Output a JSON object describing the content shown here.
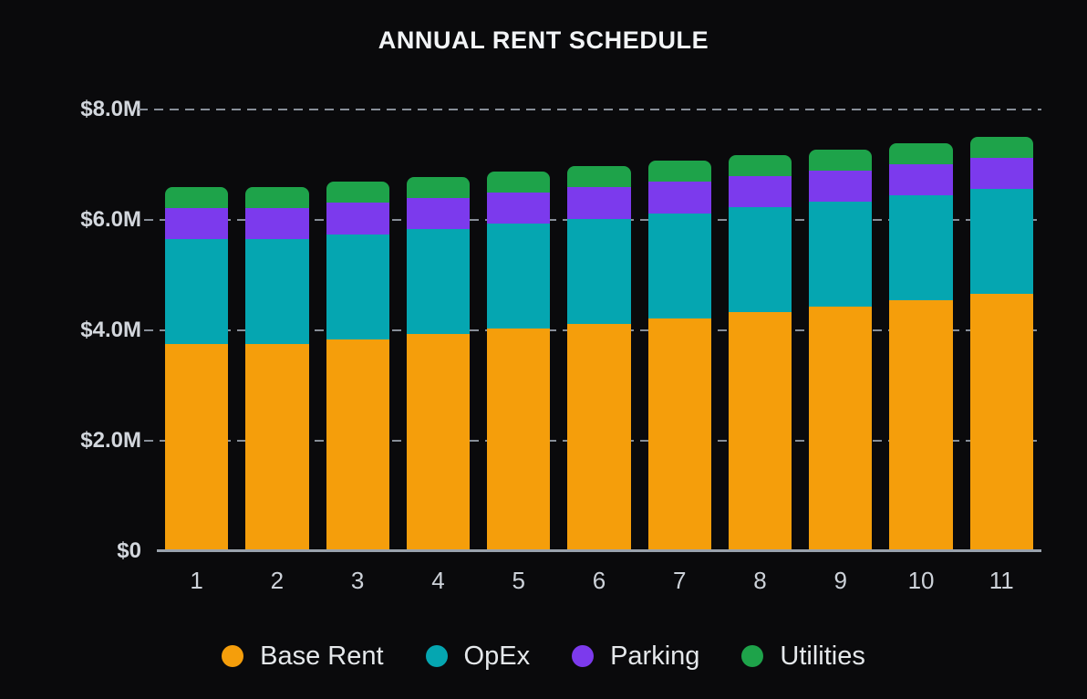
{
  "title": "ANNUAL RENT SCHEDULE",
  "chart_data": {
    "type": "bar",
    "stacked": true,
    "title": "ANNUAL RENT SCHEDULE",
    "categories": [
      "1",
      "2",
      "3",
      "4",
      "5",
      "6",
      "7",
      "8",
      "9",
      "10",
      "11"
    ],
    "xlabel": "",
    "ylabel": "",
    "y_unit": "USD millions",
    "ylim": [
      0,
      8
    ],
    "grid": "dashed horizontal",
    "legend_position": "bottom",
    "yticks": [
      {
        "label": "$0",
        "value": 0
      },
      {
        "label": "$2.0M",
        "value": 2
      },
      {
        "label": "$4.0M",
        "value": 4
      },
      {
        "label": "$6.0M",
        "value": 6
      },
      {
        "label": "$8.0M",
        "value": 8
      }
    ],
    "series": [
      {
        "name": "Base Rent",
        "color": "#F59E0B",
        "values": [
          3.75,
          3.75,
          3.84,
          3.93,
          4.03,
          4.12,
          4.22,
          4.33,
          4.43,
          4.54,
          4.66
        ]
      },
      {
        "name": "OpEx",
        "color": "#05A6B1",
        "values": [
          1.9,
          1.9,
          1.9,
          1.9,
          1.9,
          1.9,
          1.9,
          1.9,
          1.9,
          1.9,
          1.9
        ]
      },
      {
        "name": "Parking",
        "color": "#7C3AED",
        "values": [
          0.57,
          0.57,
          0.57,
          0.57,
          0.57,
          0.57,
          0.57,
          0.57,
          0.57,
          0.57,
          0.57
        ]
      },
      {
        "name": "Utilities",
        "color": "#1EA34A",
        "values": [
          0.38,
          0.38,
          0.38,
          0.38,
          0.38,
          0.38,
          0.38,
          0.38,
          0.38,
          0.38,
          0.38
        ]
      }
    ],
    "totals": [
      6.6,
      6.6,
      6.69,
      6.78,
      6.88,
      6.97,
      7.07,
      7.18,
      7.28,
      7.39,
      7.51
    ]
  },
  "theme": {
    "background": "#0A0A0C",
    "title_color": "#F2F4F6",
    "axis_text_color": "#D3D7DD",
    "x_text_color": "#CDD2D9",
    "gridline_color": "#878E98",
    "axis_line_color": "#9AA2AC",
    "legend_text_color": "#E5E8EB"
  }
}
